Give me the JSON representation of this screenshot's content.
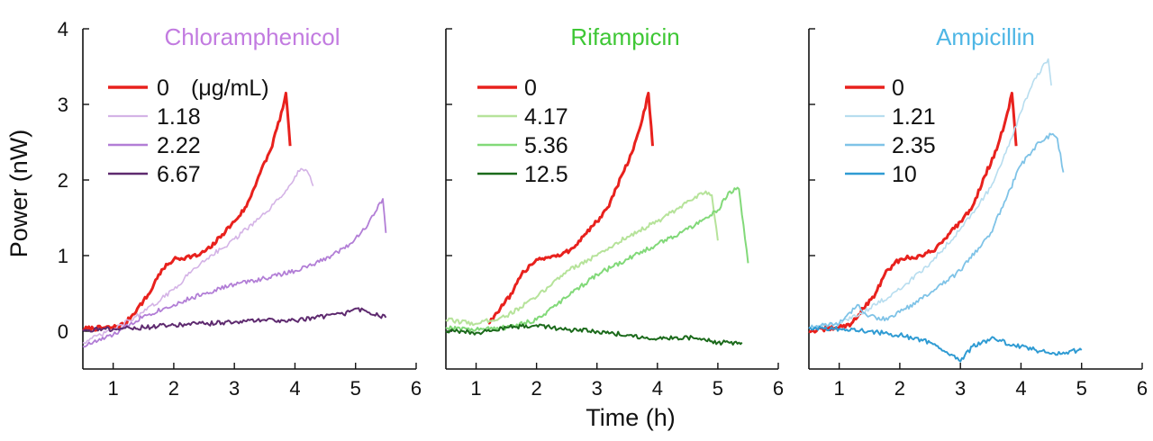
{
  "y_axis_label": "Power (nW)",
  "x_axis_label": "Time (h)",
  "chart_data": [
    {
      "type": "line",
      "title": "Chloramphenicol",
      "title_color": "#c27be0",
      "legend_unit": "(μg/mL)",
      "xlim": [
        0.5,
        6
      ],
      "ylim": [
        -0.5,
        4
      ],
      "x_ticks": [
        1,
        2,
        3,
        4,
        5,
        6
      ],
      "y_ticks": [
        0,
        1,
        2,
        3,
        4
      ],
      "y_tick_labels": [
        "0",
        "1",
        "2",
        "3",
        "4"
      ],
      "series": [
        {
          "name": "0",
          "color": "#e8211d",
          "width": 3,
          "x": [
            0.5,
            1.0,
            1.2,
            1.4,
            1.6,
            1.75,
            1.9,
            2.0,
            2.2,
            2.4,
            2.6,
            2.8,
            3.0,
            3.2,
            3.4,
            3.6,
            3.8,
            3.85,
            3.92
          ],
          "y": [
            0.03,
            0.05,
            0.1,
            0.3,
            0.5,
            0.75,
            0.88,
            0.95,
            0.98,
            1.0,
            1.1,
            1.28,
            1.45,
            1.65,
            2.05,
            2.4,
            2.95,
            3.15,
            2.45
          ]
        },
        {
          "name": "1.18",
          "color": "#d4b3e6",
          "width": 1.6,
          "x": [
            0.5,
            1.0,
            1.5,
            2.0,
            2.3,
            2.6,
            2.9,
            3.2,
            3.5,
            3.8,
            4.0,
            4.1,
            4.2,
            4.3
          ],
          "y": [
            -0.15,
            0.02,
            0.25,
            0.55,
            0.8,
            1.0,
            1.15,
            1.35,
            1.55,
            1.8,
            2.05,
            2.15,
            2.12,
            1.92
          ]
        },
        {
          "name": "2.22",
          "color": "#b27ed6",
          "width": 1.8,
          "x": [
            0.5,
            1.0,
            1.5,
            2.0,
            2.5,
            3.0,
            3.5,
            4.0,
            4.3,
            4.6,
            4.9,
            5.2,
            5.4,
            5.45,
            5.5
          ],
          "y": [
            -0.2,
            -0.05,
            0.2,
            0.35,
            0.5,
            0.62,
            0.7,
            0.8,
            0.88,
            1.0,
            1.15,
            1.4,
            1.7,
            1.75,
            1.3
          ]
        },
        {
          "name": "6.67",
          "color": "#5e2a6f",
          "width": 2,
          "x": [
            0.5,
            1.0,
            1.5,
            2.0,
            2.5,
            3.0,
            3.5,
            4.0,
            4.5,
            4.8,
            5.0,
            5.2,
            5.5
          ],
          "y": [
            0.02,
            0.03,
            0.05,
            0.08,
            0.1,
            0.12,
            0.15,
            0.14,
            0.2,
            0.22,
            0.3,
            0.25,
            0.18
          ]
        }
      ]
    },
    {
      "type": "line",
      "title": "Rifampicin",
      "title_color": "#3ec735",
      "legend_unit": "",
      "xlim": [
        0.5,
        6
      ],
      "ylim": [
        -0.5,
        4
      ],
      "x_ticks": [
        1,
        2,
        3,
        4,
        5,
        6
      ],
      "y_ticks": [
        0,
        1,
        2,
        3,
        4
      ],
      "y_tick_labels": [],
      "series": [
        {
          "name": "0",
          "color": "#e8211d",
          "width": 3,
          "x": [
            1.2,
            1.4,
            1.6,
            1.75,
            1.9,
            2.0,
            2.2,
            2.4,
            2.6,
            2.8,
            3.0,
            3.2,
            3.4,
            3.6,
            3.8,
            3.85,
            3.92
          ],
          "y": [
            0.1,
            0.3,
            0.5,
            0.75,
            0.88,
            0.95,
            0.98,
            1.0,
            1.1,
            1.28,
            1.45,
            1.65,
            2.05,
            2.4,
            2.95,
            3.15,
            2.45
          ]
        },
        {
          "name": "4.17",
          "color": "#b6e39a",
          "width": 2,
          "x": [
            0.5,
            1.0,
            1.5,
            2.0,
            2.5,
            3.0,
            3.5,
            4.0,
            4.3,
            4.6,
            4.8,
            4.9,
            5.0
          ],
          "y": [
            0.15,
            0.1,
            0.2,
            0.45,
            0.8,
            1.0,
            1.25,
            1.45,
            1.6,
            1.75,
            1.85,
            1.8,
            1.2
          ]
        },
        {
          "name": "5.36",
          "color": "#82d979",
          "width": 2,
          "x": [
            0.5,
            1.0,
            1.5,
            2.0,
            2.5,
            3.0,
            3.5,
            4.0,
            4.5,
            5.0,
            5.2,
            5.35,
            5.5
          ],
          "y": [
            0.05,
            0.02,
            0.05,
            0.15,
            0.45,
            0.75,
            0.95,
            1.15,
            1.35,
            1.6,
            1.85,
            1.88,
            0.9
          ]
        },
        {
          "name": "12.5",
          "color": "#1b6a1b",
          "width": 2,
          "x": [
            0.5,
            1.0,
            1.5,
            2.0,
            2.5,
            3.0,
            3.5,
            4.0,
            4.5,
            5.0,
            5.4
          ],
          "y": [
            0.0,
            -0.02,
            0.05,
            0.08,
            0.02,
            0.0,
            -0.05,
            -0.1,
            -0.08,
            -0.15,
            -0.15
          ]
        }
      ]
    },
    {
      "type": "line",
      "title": "Ampicillin",
      "title_color": "#4eb6e5",
      "legend_unit": "",
      "xlim": [
        0.5,
        6
      ],
      "ylim": [
        -0.5,
        4
      ],
      "x_ticks": [
        1,
        2,
        3,
        4,
        5,
        6
      ],
      "y_ticks": [
        0,
        1,
        2,
        3,
        4
      ],
      "y_tick_labels": [],
      "series": [
        {
          "name": "0",
          "color": "#e8211d",
          "width": 3,
          "x": [
            0.5,
            1.0,
            1.2,
            1.4,
            1.6,
            1.75,
            1.9,
            2.0,
            2.2,
            2.4,
            2.6,
            2.8,
            3.0,
            3.2,
            3.4,
            3.6,
            3.8,
            3.85,
            3.92
          ],
          "y": [
            0.0,
            0.05,
            0.1,
            0.3,
            0.5,
            0.75,
            0.88,
            0.95,
            0.98,
            1.0,
            1.1,
            1.28,
            1.45,
            1.65,
            2.05,
            2.4,
            2.95,
            3.15,
            2.45
          ]
        },
        {
          "name": "1.21",
          "color": "#b7ddef",
          "width": 1.6,
          "x": [
            0.5,
            1.0,
            1.5,
            2.0,
            2.5,
            3.0,
            3.5,
            3.8,
            4.0,
            4.2,
            4.4,
            4.45,
            4.5
          ],
          "y": [
            0.05,
            0.1,
            0.3,
            0.55,
            0.9,
            1.35,
            1.9,
            2.45,
            2.9,
            3.3,
            3.55,
            3.6,
            3.25
          ]
        },
        {
          "name": "2.35",
          "color": "#7fc3e7",
          "width": 1.8,
          "x": [
            0.5,
            1.0,
            1.3,
            1.5,
            1.8,
            2.0,
            2.5,
            3.0,
            3.5,
            4.0,
            4.3,
            4.5,
            4.6,
            4.7
          ],
          "y": [
            0.05,
            0.1,
            0.35,
            0.2,
            0.15,
            0.25,
            0.5,
            0.8,
            1.3,
            2.2,
            2.5,
            2.6,
            2.55,
            2.1
          ]
        },
        {
          "name": "10",
          "color": "#2f9bd3",
          "width": 2,
          "x": [
            0.5,
            1.0,
            1.5,
            2.0,
            2.5,
            2.8,
            3.0,
            3.2,
            3.5,
            4.0,
            4.5,
            5.0
          ],
          "y": [
            0.05,
            0.03,
            0.0,
            -0.05,
            -0.15,
            -0.3,
            -0.4,
            -0.2,
            -0.1,
            -0.2,
            -0.3,
            -0.25
          ]
        }
      ]
    }
  ]
}
